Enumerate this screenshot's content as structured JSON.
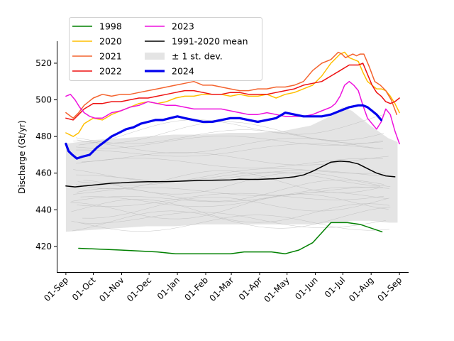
{
  "chart_data": {
    "type": "line",
    "title": "",
    "xlabel": "",
    "ylabel": "Discharge (Gt/yr)",
    "x_axis": "days since 01-Sep",
    "xlim": [
      -10,
      375
    ],
    "ylim": [
      406,
      532
    ],
    "yticks": [
      420,
      440,
      460,
      480,
      500,
      520
    ],
    "xticks": [
      {
        "x": 0,
        "label": "01-Sep"
      },
      {
        "x": 30,
        "label": "01-Oct"
      },
      {
        "x": 61,
        "label": "01-Nov"
      },
      {
        "x": 91,
        "label": "01-Dec"
      },
      {
        "x": 122,
        "label": "01-Jan"
      },
      {
        "x": 153,
        "label": "01-Feb"
      },
      {
        "x": 181,
        "label": "01-Mar"
      },
      {
        "x": 212,
        "label": "01-Apr"
      },
      {
        "x": 242,
        "label": "01-May"
      },
      {
        "x": 273,
        "label": "01-Jun"
      },
      {
        "x": 303,
        "label": "01-Jul"
      },
      {
        "x": 334,
        "label": "01-Aug"
      },
      {
        "x": 365,
        "label": "01-Sep"
      }
    ],
    "legend": {
      "placement": "top-left",
      "columns": 2,
      "entries": [
        {
          "label": "1998",
          "color": "#008000",
          "kind": "line"
        },
        {
          "label": "2020",
          "color": "#ffbf00",
          "kind": "line"
        },
        {
          "label": "2021",
          "color": "#f4632e",
          "kind": "line"
        },
        {
          "label": "2022",
          "color": "#ee1111",
          "kind": "line"
        },
        {
          "label": "2023",
          "color": "#ee11dd",
          "kind": "line"
        },
        {
          "label": "1991-2020 mean",
          "color": "#000000",
          "kind": "line"
        },
        {
          "label": "± 1 st. dev.",
          "color": "#e4e4e4",
          "kind": "patch"
        },
        {
          "label": "2024",
          "color": "#0000ee",
          "kind": "thickline"
        }
      ]
    },
    "band": {
      "name": "± 1 st. dev.",
      "color": "#e4e4e4",
      "x": [
        0,
        28,
        58,
        88,
        118,
        148,
        178,
        208,
        238,
        268,
        293,
        303,
        313,
        333,
        353,
        363
      ],
      "upper": [
        476,
        478,
        479,
        480,
        481,
        481,
        482,
        482,
        483,
        486,
        492,
        496,
        494,
        486,
        479,
        477
      ],
      "lower": [
        428,
        429,
        430,
        431,
        431,
        432,
        432,
        432,
        432,
        432,
        433,
        433,
        434,
        434,
        433,
        433
      ]
    },
    "series": [
      {
        "name": "1998",
        "color": "#008000",
        "width": 1.5,
        "x": [
          14,
          60,
          100,
          120,
          140,
          160,
          180,
          195,
          210,
          225,
          240,
          255,
          270,
          290,
          308,
          322,
          346
        ],
        "y": [
          419,
          418,
          417,
          416,
          416,
          416,
          416,
          417,
          417,
          417,
          416,
          418,
          422,
          433,
          433,
          432,
          428
        ]
      },
      {
        "name": "2020",
        "color": "#ffbf00",
        "width": 1.5,
        "x": [
          0,
          8,
          14,
          20,
          30,
          40,
          50,
          60,
          70,
          80,
          90,
          100,
          110,
          120,
          130,
          140,
          150,
          160,
          170,
          180,
          190,
          200,
          210,
          220,
          230,
          240,
          250,
          260,
          270,
          280,
          290,
          300,
          305,
          310,
          315,
          320,
          325,
          330,
          335,
          340,
          345,
          350,
          355,
          360,
          365
        ],
        "y": [
          482,
          480,
          482,
          487,
          490,
          489,
          492,
          494,
          496,
          498,
          499,
          498,
          499,
          501,
          502,
          502,
          503,
          503,
          503,
          502,
          503,
          502,
          502,
          503,
          501,
          503,
          504,
          506,
          508,
          513,
          520,
          525,
          526,
          523,
          522,
          521,
          515,
          510,
          508,
          506,
          506,
          505,
          502,
          498,
          493
        ]
      },
      {
        "name": "2021",
        "color": "#f4632e",
        "width": 1.5,
        "x": [
          0,
          8,
          14,
          20,
          30,
          40,
          50,
          60,
          70,
          80,
          90,
          100,
          110,
          120,
          130,
          140,
          150,
          160,
          170,
          180,
          190,
          200,
          210,
          220,
          230,
          240,
          250,
          260,
          270,
          280,
          290,
          298,
          302,
          306,
          310,
          314,
          318,
          322,
          326,
          332,
          338,
          344,
          350,
          356,
          362
        ],
        "y": [
          493,
          490,
          493,
          497,
          501,
          503,
          502,
          503,
          503,
          504,
          505,
          506,
          507,
          508,
          509,
          510,
          508,
          508,
          507,
          506,
          505,
          505,
          506,
          506,
          507,
          507,
          508,
          510,
          516,
          520,
          522,
          526,
          525,
          523,
          524,
          525,
          524,
          525,
          525,
          518,
          510,
          508,
          505,
          500,
          492
        ]
      },
      {
        "name": "2022",
        "color": "#ee1111",
        "width": 1.5,
        "x": [
          0,
          8,
          14,
          20,
          30,
          40,
          50,
          60,
          70,
          80,
          90,
          100,
          110,
          120,
          130,
          140,
          150,
          160,
          170,
          180,
          190,
          200,
          210,
          220,
          230,
          240,
          250,
          260,
          270,
          280,
          290,
          300,
          310,
          320,
          325,
          330,
          335,
          340,
          345,
          350,
          355,
          360,
          365
        ],
        "y": [
          490,
          489,
          492,
          495,
          498,
          498,
          499,
          499,
          500,
          501,
          501,
          502,
          503,
          504,
          505,
          505,
          504,
          503,
          503,
          504,
          504,
          503,
          503,
          503,
          504,
          505,
          506,
          508,
          509,
          510,
          513,
          516,
          519,
          519,
          520,
          514,
          508,
          504,
          502,
          499,
          498,
          499,
          501
        ]
      },
      {
        "name": "2023",
        "color": "#ee11dd",
        "width": 1.5,
        "x": [
          0,
          5,
          10,
          15,
          20,
          26,
          32,
          40,
          50,
          60,
          70,
          80,
          90,
          100,
          110,
          120,
          130,
          140,
          150,
          160,
          170,
          180,
          190,
          200,
          210,
          220,
          230,
          240,
          250,
          260,
          270,
          280,
          290,
          295,
          300,
          305,
          310,
          315,
          320,
          325,
          330,
          335,
          340,
          345,
          350,
          355,
          360,
          365
        ],
        "y": [
          502,
          503,
          500,
          496,
          493,
          491,
          490,
          490,
          493,
          494,
          496,
          497,
          499,
          498,
          497,
          497,
          496,
          495,
          495,
          495,
          495,
          494,
          493,
          492,
          492,
          493,
          492,
          491,
          491,
          491,
          492,
          494,
          496,
          498,
          502,
          508,
          510,
          508,
          505,
          497,
          490,
          487,
          484,
          488,
          495,
          492,
          483,
          476
        ]
      },
      {
        "name": "1991-2020 mean",
        "color": "#000000",
        "width": 1.5,
        "x": [
          0,
          10,
          20,
          30,
          40,
          50,
          60,
          70,
          80,
          90,
          100,
          110,
          120,
          130,
          140,
          150,
          160,
          170,
          180,
          190,
          200,
          210,
          220,
          230,
          240,
          250,
          260,
          270,
          280,
          290,
          300,
          310,
          320,
          330,
          340,
          350,
          360
        ],
        "y": [
          453,
          452.5,
          453,
          453.5,
          454,
          454.5,
          454.7,
          455,
          455.2,
          455.3,
          455.3,
          455.4,
          455.5,
          455.7,
          455.9,
          456,
          456.1,
          456.2,
          456.3,
          456.7,
          456.6,
          456.6,
          456.8,
          457,
          457.5,
          458,
          459,
          461,
          463.5,
          466,
          466.5,
          466.2,
          465,
          462.5,
          460,
          458.5,
          458
        ]
      },
      {
        "name": "2024",
        "color": "#0000ee",
        "width": 3.2,
        "x": [
          0,
          3,
          7,
          12,
          18,
          26,
          34,
          42,
          50,
          58,
          66,
          74,
          82,
          90,
          98,
          106,
          114,
          122,
          130,
          140,
          150,
          160,
          170,
          180,
          190,
          200,
          210,
          220,
          230,
          240,
          250,
          260,
          270,
          280,
          290,
          300,
          310,
          320,
          325,
          330,
          335,
          340,
          345
        ],
        "y": [
          476,
          472,
          470,
          468,
          469,
          470,
          474,
          477,
          480,
          482,
          484,
          485,
          487,
          488,
          489,
          489,
          490,
          491,
          490,
          489,
          488,
          488,
          489,
          490,
          490,
          489,
          488,
          489,
          490,
          493,
          492,
          491,
          491,
          491,
          492,
          494,
          496,
          497,
          497,
          496,
          494,
          492,
          489
        ]
      }
    ]
  }
}
